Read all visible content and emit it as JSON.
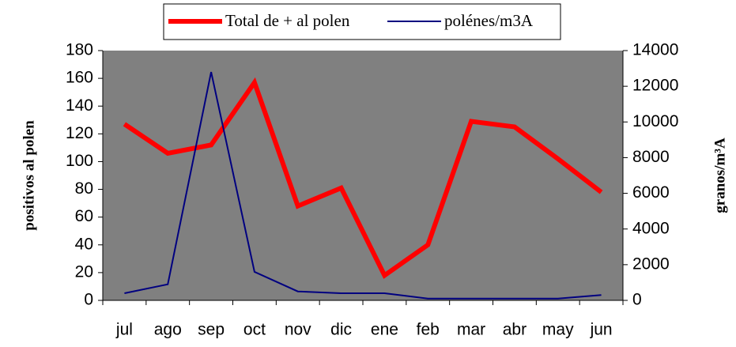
{
  "chart_data": {
    "type": "line",
    "categories": [
      "jul",
      "ago",
      "sep",
      "oct",
      "nov",
      "dic",
      "ene",
      "feb",
      "mar",
      "abr",
      "may",
      "jun"
    ],
    "series": [
      {
        "name": "Total de + al polen",
        "color": "#ff0000",
        "values": [
          127,
          106,
          112,
          157,
          68,
          81,
          18,
          40,
          129,
          125,
          102,
          78
        ]
      },
      {
        "name": "polénes/m3A",
        "color": "#000080",
        "axis": "y2",
        "values": [
          400,
          900,
          12800,
          1600,
          500,
          400,
          400,
          100,
          100,
          100,
          100,
          300
        ]
      }
    ],
    "ylabel": "positivos al polen",
    "y2label": "granos/m³A",
    "ylim": [
      0,
      180
    ],
    "yticks": [
      0,
      20,
      40,
      60,
      80,
      100,
      120,
      140,
      160,
      180
    ],
    "y2lim": [
      0,
      14000
    ],
    "y2ticks": [
      0,
      2000,
      4000,
      6000,
      8000,
      10000,
      12000,
      14000
    ],
    "plot_background": "#808080"
  }
}
